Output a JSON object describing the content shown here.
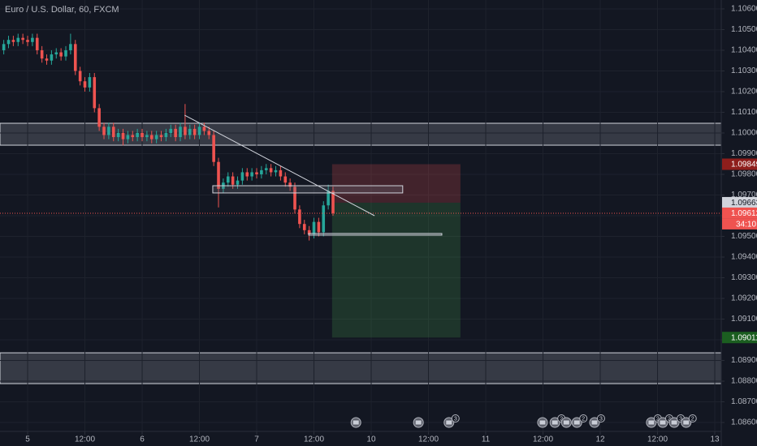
{
  "chart_data": {
    "type": "candlestick",
    "title": "Euro / U.S. Dollar, 60, FXCM",
    "up_color": "#26a69a",
    "down_color": "#ef5350",
    "grid": true,
    "x": [
      -5,
      -4,
      -3,
      -2,
      -1,
      0,
      1,
      2,
      3,
      4,
      5,
      6,
      7,
      8,
      9,
      10,
      11,
      12,
      13,
      14,
      15,
      16,
      17,
      18,
      19,
      20,
      21,
      22,
      23,
      24,
      25,
      26,
      27,
      28,
      29,
      30,
      31,
      32,
      33,
      34,
      35,
      36,
      37,
      38,
      39,
      40,
      41,
      42,
      43,
      44,
      45,
      46,
      47,
      48,
      49,
      50,
      51,
      52,
      53,
      54,
      55,
      56,
      57,
      58,
      59,
      60,
      61,
      62,
      63,
      64
    ],
    "open": [
      1.104,
      1.1043,
      1.1045,
      1.1044,
      1.1046,
      1.1045,
      1.1044,
      1.1046,
      1.104,
      1.1036,
      1.1035,
      1.1038,
      1.1039,
      1.1037,
      1.104,
      1.1043,
      1.103,
      1.1025,
      1.1022,
      1.1027,
      1.1012,
      1.1003,
      1.0999,
      1.1003,
      1.0998,
      1.1,
      1.0997,
      1.0999,
      1.0998,
      1.1,
      1.0998,
      1.0999,
      1.0997,
      1.0999,
      1.0998,
      1.1,
      1.1002,
      1.0998,
      1.1003,
      1.0999,
      1.1002,
      1.0999,
      1.1003,
      1.1001,
      1.0999,
      1.0986,
      1.0973,
      1.0976,
      1.0979,
      1.0975,
      1.0977,
      1.0981,
      1.0979,
      1.0981,
      1.098,
      1.0982,
      1.0983,
      1.0981,
      1.0982,
      1.0979,
      1.0976,
      1.0974,
      1.0963,
      1.0956,
      1.0953,
      1.0951,
      1.0957,
      1.0952,
      1.0965,
      1.0972
    ],
    "high": [
      1.1045,
      1.1047,
      1.1047,
      1.1048,
      1.1048,
      1.1047,
      1.1048,
      1.1048,
      1.1042,
      1.1038,
      1.104,
      1.1041,
      1.1041,
      1.1042,
      1.1048,
      1.1045,
      1.1032,
      1.1027,
      1.1029,
      1.1029,
      1.1014,
      1.1005,
      1.1005,
      1.1005,
      1.1002,
      1.1002,
      1.1001,
      1.1001,
      1.1002,
      1.1002,
      1.1001,
      1.1001,
      1.1001,
      1.1001,
      1.1002,
      1.1004,
      1.1004,
      1.1005,
      1.1014,
      1.1004,
      1.1004,
      1.1005,
      1.1005,
      1.1003,
      1.1001,
      1.0988,
      1.0978,
      1.0981,
      1.0981,
      1.0979,
      1.0983,
      1.0983,
      1.0983,
      1.0983,
      1.0984,
      1.0985,
      1.0985,
      1.0984,
      1.0984,
      1.0981,
      1.0978,
      1.0976,
      1.0965,
      1.0958,
      1.0955,
      1.0959,
      1.0959,
      1.0967,
      1.0975,
      1.0974
    ],
    "low": [
      1.1038,
      1.1041,
      1.1042,
      1.1042,
      1.1043,
      1.1042,
      1.1042,
      1.1038,
      1.1034,
      1.1033,
      1.1033,
      1.1036,
      1.1035,
      1.1035,
      1.1038,
      1.1028,
      1.1023,
      1.102,
      1.102,
      1.101,
      1.1001,
      1.0997,
      1.0997,
      1.0996,
      1.0996,
      1.0994,
      1.0995,
      1.0996,
      1.0996,
      1.0996,
      1.0996,
      1.0995,
      1.0995,
      1.0996,
      1.0996,
      1.0998,
      1.0996,
      1.0996,
      1.0997,
      1.0997,
      1.0997,
      1.0997,
      1.0999,
      1.0997,
      1.0984,
      1.0964,
      1.0971,
      1.0974,
      1.0973,
      1.0973,
      1.0975,
      1.0977,
      1.0977,
      1.0978,
      1.0978,
      1.098,
      1.0979,
      1.0979,
      1.0977,
      1.0974,
      1.0972,
      1.0961,
      1.0954,
      1.0951,
      1.0948,
      1.0949,
      1.095,
      1.095,
      1.0963,
      1.096
    ],
    "close": [
      1.1043,
      1.1045,
      1.1044,
      1.1046,
      1.1045,
      1.1044,
      1.1046,
      1.104,
      1.1036,
      1.1035,
      1.1038,
      1.1039,
      1.1037,
      1.104,
      1.1043,
      1.103,
      1.1025,
      1.1022,
      1.1027,
      1.1012,
      1.1003,
      1.0999,
      1.1003,
      1.0998,
      1.1,
      1.0997,
      1.0999,
      1.0998,
      1.1,
      1.0998,
      1.0999,
      1.0997,
      1.0999,
      1.0998,
      1.1,
      1.1002,
      1.0998,
      1.1003,
      1.0999,
      1.1002,
      1.0999,
      1.1003,
      1.1001,
      1.0999,
      1.0986,
      1.0973,
      1.0976,
      1.0979,
      1.0975,
      1.0977,
      1.0981,
      1.0979,
      1.0981,
      1.098,
      1.0982,
      1.0983,
      1.0981,
      1.0982,
      1.0979,
      1.0976,
      1.0974,
      1.0963,
      1.0956,
      1.0953,
      1.0951,
      1.0957,
      1.0952,
      1.0965,
      1.0972,
      1.09612
    ],
    "countdown": "34:10",
    "xlim": [
      -5.79,
      145.36
    ],
    "ylim": [
      1.08557,
      1.10643
    ],
    "xticks": [
      {
        "value": 0,
        "label": "5"
      },
      {
        "value": 12,
        "label": "12:00"
      },
      {
        "value": 24,
        "label": "6"
      },
      {
        "value": 36,
        "label": "12:00"
      },
      {
        "value": 48,
        "label": "7"
      },
      {
        "value": 60,
        "label": "12:00"
      },
      {
        "value": 72,
        "label": "10"
      },
      {
        "value": 84,
        "label": "12:00"
      },
      {
        "value": 96,
        "label": "11"
      },
      {
        "value": 108,
        "label": "12:00"
      },
      {
        "value": 120,
        "label": "12"
      },
      {
        "value": 132,
        "label": "12:00"
      },
      {
        "value": 144,
        "label": "13"
      }
    ],
    "yticks": [
      {
        "value": 1.086,
        "label": "1.08600"
      },
      {
        "value": 1.087,
        "label": "1.08700"
      },
      {
        "value": 1.088,
        "label": "1.08800"
      },
      {
        "value": 1.089,
        "label": "1.08900"
      },
      {
        "value": 1.09,
        "label": "1.09000"
      },
      {
        "value": 1.091,
        "label": "1.09100"
      },
      {
        "value": 1.092,
        "label": "1.09200"
      },
      {
        "value": 1.093,
        "label": "1.09300"
      },
      {
        "value": 1.094,
        "label": "1.09400"
      },
      {
        "value": 1.095,
        "label": "1.09500"
      },
      {
        "value": 1.096,
        "label": "1.09600"
      },
      {
        "value": 1.097,
        "label": "1.09700"
      },
      {
        "value": 1.098,
        "label": "1.09800"
      },
      {
        "value": 1.099,
        "label": "1.09900"
      },
      {
        "value": 1.1,
        "label": "1.10000"
      },
      {
        "value": 1.101,
        "label": "1.10100"
      },
      {
        "value": 1.102,
        "label": "1.10200"
      },
      {
        "value": 1.103,
        "label": "1.10300"
      },
      {
        "value": 1.104,
        "label": "1.10400"
      },
      {
        "value": 1.105,
        "label": "1.10500"
      },
      {
        "value": 1.106,
        "label": "1.10600"
      }
    ],
    "zones": [
      {
        "y": [
          1.10047,
          1.09941
        ]
      },
      {
        "y": [
          1.08937,
          1.08788
        ]
      }
    ],
    "boxes": [
      {
        "x": [
          38.8,
          78.6
        ],
        "y": [
          1.09745,
          1.0971
        ]
      },
      {
        "x": [
          58.9,
          86.8
        ],
        "y": [
          1.09514,
          1.09506
        ]
      }
    ],
    "trendline": {
      "x": [
        32.9,
        72.7
      ],
      "y": [
        1.10086,
        1.096
      ]
    },
    "position": {
      "x": [
        63.8,
        90.7
      ],
      "entry": 1.09663,
      "stop": 1.09849,
      "target": 1.09011
    },
    "events": [
      {
        "x": 68.8
      },
      {
        "x": 81.9
      },
      {
        "x": 88.3,
        "count": 3
      },
      {
        "x": 107.9
      },
      {
        "x": 110.5,
        "count": 2
      },
      {
        "x": 112.9
      },
      {
        "x": 115.1,
        "count": 2
      },
      {
        "x": 118.8,
        "count": 3
      },
      {
        "x": 130.7,
        "count": 2
      },
      {
        "x": 133.1,
        "count": 2
      },
      {
        "x": 135.5,
        "count": 3
      },
      {
        "x": 138.0,
        "count": 2
      }
    ]
  }
}
